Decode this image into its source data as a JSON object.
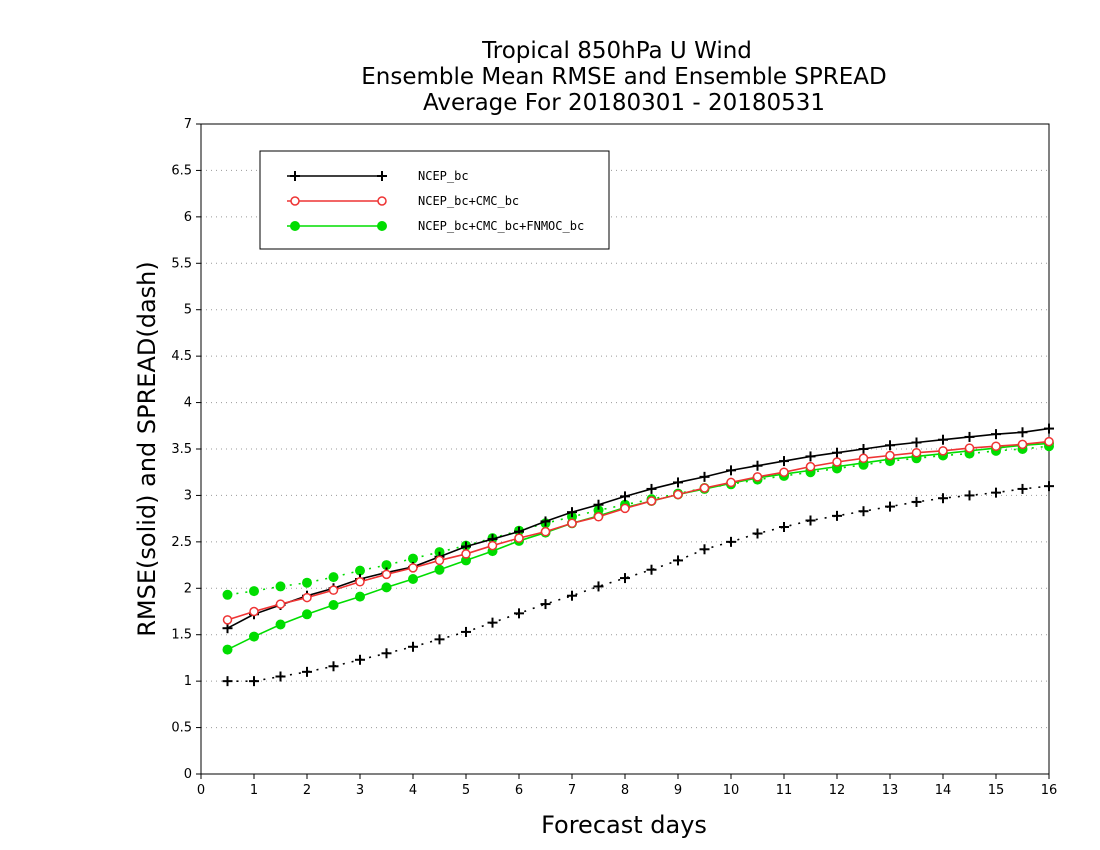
{
  "chart_data": {
    "type": "line",
    "title": [
      "Tropical 850hPa U Wind",
      "Ensemble Mean RMSE and Ensemble SPREAD",
      "Average For 20180301 - 20180531"
    ],
    "xlabel": "Forecast days",
    "ylabel": "RMSE(solid) and SPREAD(dash)",
    "xlim": [
      0,
      16
    ],
    "ylim": [
      0,
      7
    ],
    "xticks": [
      "0",
      "1",
      "2",
      "3",
      "4",
      "5",
      "6",
      "7",
      "8",
      "9",
      "10",
      "11",
      "12",
      "13",
      "14",
      "15",
      "16"
    ],
    "yticks": [
      "0",
      "0.5",
      "1",
      "1.5",
      "2",
      "2.5",
      "3",
      "3.5",
      "4",
      "4.5",
      "5",
      "5.5",
      "6",
      "6.5",
      "7"
    ],
    "grid": "horizontal dotted",
    "legend_position": "top-left",
    "x": [
      0.5,
      1,
      1.5,
      2,
      2.5,
      3,
      3.5,
      4,
      4.5,
      5,
      5.5,
      6,
      6.5,
      7,
      7.5,
      8,
      8.5,
      9,
      9.5,
      10,
      10.5,
      11,
      11.5,
      12,
      12.5,
      13,
      13.5,
      14,
      14.5,
      15,
      15.5,
      16
    ],
    "series": [
      {
        "name": "NCEP_bc",
        "marker": "plus",
        "color": "#000000",
        "rmse": [
          1.57,
          1.72,
          1.82,
          1.92,
          2.0,
          2.1,
          2.17,
          2.23,
          2.34,
          2.45,
          2.53,
          2.61,
          2.72,
          2.82,
          2.9,
          2.99,
          3.07,
          3.14,
          3.2,
          3.27,
          3.32,
          3.37,
          3.42,
          3.46,
          3.5,
          3.54,
          3.57,
          3.6,
          3.63,
          3.66,
          3.68,
          3.72
        ],
        "spread": [
          1.0,
          1.0,
          1.05,
          1.1,
          1.16,
          1.23,
          1.3,
          1.37,
          1.45,
          1.53,
          1.63,
          1.73,
          1.83,
          1.92,
          2.02,
          2.11,
          2.2,
          2.3,
          2.42,
          2.5,
          2.59,
          2.66,
          2.73,
          2.78,
          2.83,
          2.88,
          2.93,
          2.97,
          3.0,
          3.03,
          3.07,
          3.1
        ]
      },
      {
        "name": "NCEP_bc+CMC_bc",
        "marker": "open-circle",
        "color": "#ee3333",
        "rmse": [
          1.66,
          1.75,
          1.83,
          1.9,
          1.98,
          2.07,
          2.15,
          2.22,
          2.3,
          2.37,
          2.46,
          2.54,
          2.61,
          2.7,
          2.77,
          2.86,
          2.94,
          3.01,
          3.08,
          3.14,
          3.2,
          3.25,
          3.31,
          3.36,
          3.4,
          3.43,
          3.46,
          3.48,
          3.51,
          3.53,
          3.55,
          3.58
        ],
        "spread": []
      },
      {
        "name": "NCEP_bc+CMC_bc+FNMOC_bc",
        "marker": "filled-circle",
        "color": "#00dd00",
        "rmse": [
          1.34,
          1.48,
          1.61,
          1.72,
          1.82,
          1.91,
          2.01,
          2.1,
          2.2,
          2.3,
          2.4,
          2.51,
          2.6,
          2.7,
          2.78,
          2.87,
          2.94,
          3.01,
          3.07,
          3.13,
          3.19,
          3.23,
          3.27,
          3.31,
          3.35,
          3.39,
          3.42,
          3.45,
          3.48,
          3.51,
          3.54,
          3.56
        ],
        "spread": [
          1.93,
          1.97,
          2.02,
          2.06,
          2.12,
          2.19,
          2.25,
          2.32,
          2.39,
          2.46,
          2.54,
          2.62,
          2.7,
          2.77,
          2.84,
          2.9,
          2.96,
          3.02,
          3.08,
          3.12,
          3.17,
          3.21,
          3.25,
          3.29,
          3.33,
          3.37,
          3.4,
          3.43,
          3.45,
          3.48,
          3.5,
          3.53
        ]
      }
    ]
  }
}
